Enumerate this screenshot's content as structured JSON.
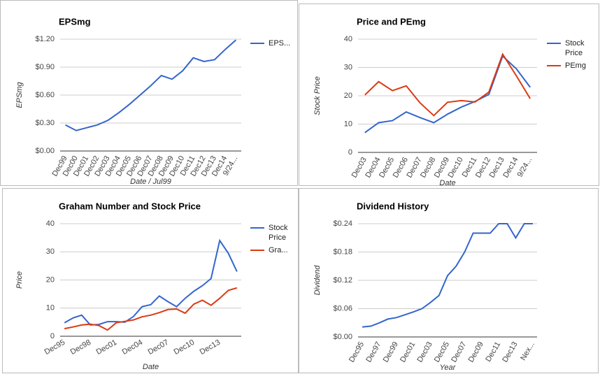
{
  "chart_data": [
    {
      "type": "line",
      "title": "EPSmg",
      "x_label": "Date / Jul99",
      "y_label": "EPSmg",
      "categories": [
        "Dec99",
        "Dec00",
        "Dec01",
        "Dec02",
        "Dec03",
        "Dec04",
        "Dec05",
        "Dec06",
        "Dec07",
        "Dec08",
        "Dec09",
        "Dec10",
        "Dec11",
        "Dec12",
        "Dec13",
        "Dec14",
        "9/24..."
      ],
      "series": [
        {
          "name": "EPS...",
          "color": "#3366cc",
          "values": [
            0.28,
            0.22,
            0.25,
            0.28,
            0.33,
            0.41,
            0.5,
            0.6,
            0.7,
            0.81,
            0.77,
            0.86,
            1.0,
            0.96,
            0.98,
            1.09,
            1.19
          ]
        }
      ],
      "ylim": [
        0,
        1.2
      ],
      "yticks": [
        {
          "value": 0,
          "label": "$0.00"
        },
        {
          "value": 0.3,
          "label": "$0.30"
        },
        {
          "value": 0.6,
          "label": "$0.60"
        },
        {
          "value": 0.9,
          "label": "$0.90"
        },
        {
          "value": 1.2,
          "label": "$1.20"
        }
      ],
      "grid": true,
      "legend": "right"
    },
    {
      "type": "line",
      "title": "Price and PEmg",
      "x_label": "Date",
      "y_label": "Stock Price",
      "categories": [
        "Dec03",
        "Dec04",
        "Dec05",
        "Dec06",
        "Dec07",
        "Dec08",
        "Dec09",
        "Dec10",
        "Dec11",
        "Dec12",
        "Dec13",
        "Dec14",
        "9/24..."
      ],
      "series": [
        {
          "name": "Stock Price",
          "color": "#3366cc",
          "values": [
            7,
            10.5,
            11.2,
            14.3,
            12.3,
            10.5,
            13.5,
            16,
            18,
            20.5,
            34,
            29.5,
            23
          ]
        },
        {
          "name": "PEmg",
          "color": "#dc3912",
          "values": [
            20.3,
            25,
            21.8,
            23.5,
            17.5,
            13,
            17.7,
            18.3,
            17.8,
            21.3,
            34.7,
            27,
            19
          ]
        }
      ],
      "ylim": [
        0,
        40
      ],
      "yticks": [
        0,
        10,
        20,
        30,
        40
      ],
      "grid": true,
      "legend": "right"
    },
    {
      "type": "line",
      "title": "Graham Number and Stock Price",
      "x_label": "Date",
      "y_label": "Price",
      "categories": [
        "Dec95",
        null,
        null,
        "Dec98",
        null,
        null,
        "Dec01",
        null,
        null,
        "Dec04",
        null,
        null,
        "Dec07",
        null,
        null,
        "Dec10",
        null,
        null,
        "Dec13",
        null,
        null
      ],
      "series": [
        {
          "name": "Stock Price",
          "color": "#3366cc",
          "values": [
            4.8,
            6.5,
            7.5,
            4,
            4.2,
            5.2,
            5.2,
            5,
            7,
            10.5,
            11.2,
            14.3,
            12.3,
            10.5,
            13.5,
            16,
            18,
            20.5,
            34,
            29.5,
            23
          ]
        },
        {
          "name": "Gra...",
          "color": "#dc3912",
          "values": [
            2.7,
            3.3,
            4,
            4.3,
            3.8,
            2.2,
            4.8,
            5.3,
            5.8,
            6.9,
            7.5,
            8.4,
            9.5,
            9.7,
            8.2,
            11.4,
            12.8,
            11,
            13.5,
            16.3,
            17.2
          ]
        }
      ],
      "ylim": [
        0,
        40
      ],
      "yticks": [
        0,
        10,
        20,
        30,
        40
      ],
      "grid": true,
      "legend": "right"
    },
    {
      "type": "line",
      "title": "Dividend History",
      "x_label": "Year",
      "y_label": "Dividend",
      "categories": [
        "Dec95",
        null,
        "Dec97",
        null,
        "Dec99",
        null,
        "Dec01",
        null,
        "Dec03",
        null,
        "Dec05",
        null,
        "Dec07",
        null,
        "Dec09",
        null,
        "Dec11",
        null,
        "Dec13",
        null,
        "Nex..."
      ],
      "series": [
        {
          "color": "#3366cc",
          "values": [
            0.021,
            0.023,
            0.03,
            0.038,
            0.041,
            0.047,
            0.053,
            0.06,
            0.073,
            0.088,
            0.13,
            0.15,
            0.18,
            0.22,
            0.22,
            0.22,
            0.24,
            0.24,
            0.21,
            0.24,
            0.24
          ]
        }
      ],
      "ylim": [
        0,
        0.24
      ],
      "yticks": [
        {
          "value": 0,
          "label": "$0.00"
        },
        {
          "value": 0.06,
          "label": "$0.06"
        },
        {
          "value": 0.12,
          "label": "$0.12"
        },
        {
          "value": 0.18,
          "label": "$0.18"
        },
        {
          "value": 0.24,
          "label": "$0.24"
        }
      ],
      "grid": true
    }
  ]
}
